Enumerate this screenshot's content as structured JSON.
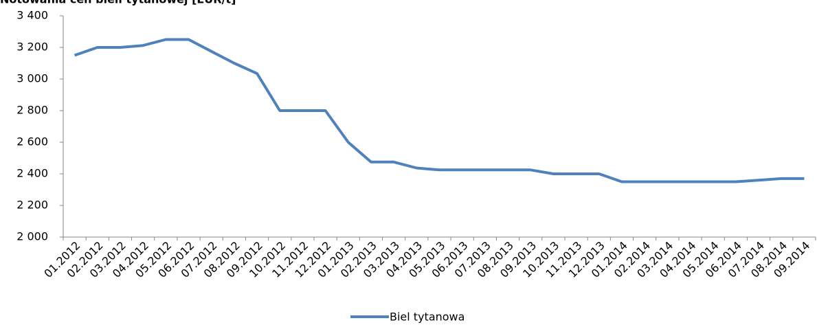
{
  "chart_data": {
    "type": "line",
    "title": "Notowania cen bieli tytanowej [EUR/t]",
    "categories": [
      "01.2012",
      "02.2012",
      "03.2012",
      "04.2012",
      "05.2012",
      "06.2012",
      "07.2012",
      "08.2012",
      "09.2012",
      "10.2012",
      "11.2012",
      "12.2012",
      "01.2013",
      "02.2013",
      "03.2013",
      "04.2013",
      "05.2013",
      "06.2013",
      "07.2013",
      "08.2013",
      "09.2013",
      "10.2013",
      "11.2013",
      "12.2013",
      "01.2014",
      "02.2014",
      "03.2014",
      "04.2014",
      "05.2014",
      "06.2014",
      "07.2014",
      "08.2014",
      "09.2014"
    ],
    "series": [
      {
        "name": "Biel tytanowa",
        "color": "#4f81bd",
        "values": [
          3150,
          3200,
          3200,
          3212,
          3250,
          3250,
          3175,
          3100,
          3035,
          2800,
          2800,
          2800,
          2600,
          2475,
          2475,
          2437,
          2425,
          2425,
          2425,
          2425,
          2425,
          2400,
          2400,
          2400,
          2350,
          2350,
          2350,
          2350,
          2350,
          2350,
          2360,
          2370,
          2370
        ]
      }
    ],
    "ylim": [
      2000,
      3400
    ],
    "yticks": [
      {
        "value": 2000,
        "label": "2 000"
      },
      {
        "value": 2200,
        "label": "2 200"
      },
      {
        "value": 2400,
        "label": "2 400"
      },
      {
        "value": 2600,
        "label": "2 600"
      },
      {
        "value": 2800,
        "label": "2 800"
      },
      {
        "value": 3000,
        "label": "3 000"
      },
      {
        "value": 3200,
        "label": "3 200"
      },
      {
        "value": 3400,
        "label": "3 400"
      }
    ],
    "grid": false,
    "legend": "bottom"
  }
}
